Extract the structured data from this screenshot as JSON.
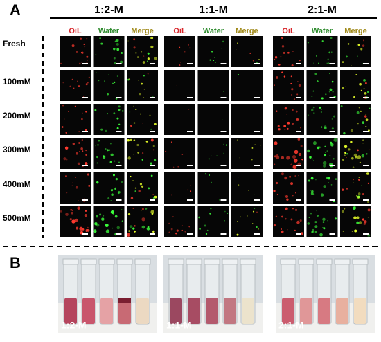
{
  "panel_a": {
    "label": "A",
    "groups": [
      {
        "title": "1:2-M",
        "channels": [
          "OiL",
          "Water",
          "Merge"
        ]
      },
      {
        "title": "1:1-M",
        "channels": [
          "OiL",
          "Water",
          "Merge"
        ]
      },
      {
        "title": "2:1-M",
        "channels": [
          "OiL",
          "Water",
          "Merge"
        ]
      }
    ],
    "rows": [
      "Fresh",
      "100mM",
      "200mM",
      "300mM",
      "400mM",
      "500mM"
    ]
  },
  "panel_b": {
    "label": "B",
    "photos": [
      "1:2-M",
      "1:1-M",
      "2:1-M"
    ]
  }
}
